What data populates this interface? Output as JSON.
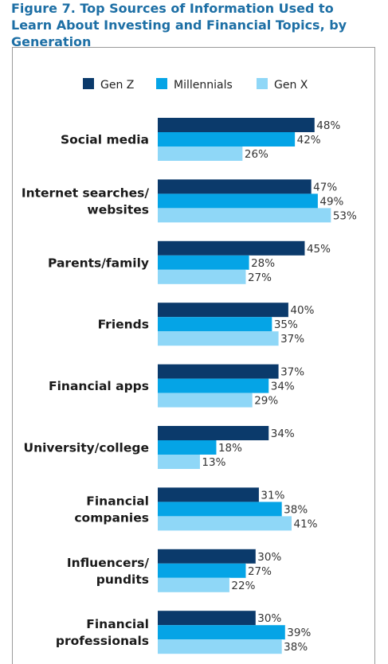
{
  "chart_data": {
    "type": "bar",
    "orientation": "horizontal",
    "title": "Figure 7. Top Sources of Information Used to Learn About Investing and Financial Topics, by Generation",
    "categories": [
      "Social media",
      "Internet searches/ websites",
      "Parents/family",
      "Friends",
      "Financial apps",
      "University/college",
      "Financial companies",
      "Influencers/ pundits",
      "Financial professionals"
    ],
    "series": [
      {
        "name": "Gen Z",
        "color": "#0b3a6b",
        "values": [
          48,
          47,
          45,
          40,
          37,
          34,
          31,
          30,
          30
        ]
      },
      {
        "name": "Millennials",
        "color": "#05a4e6",
        "values": [
          42,
          49,
          28,
          35,
          34,
          18,
          38,
          27,
          39
        ]
      },
      {
        "name": "Gen X",
        "color": "#8fd7f7",
        "values": [
          26,
          53,
          27,
          37,
          29,
          13,
          41,
          22,
          38
        ]
      }
    ],
    "value_suffix": "%",
    "legend_position": "top",
    "grid": false
  }
}
